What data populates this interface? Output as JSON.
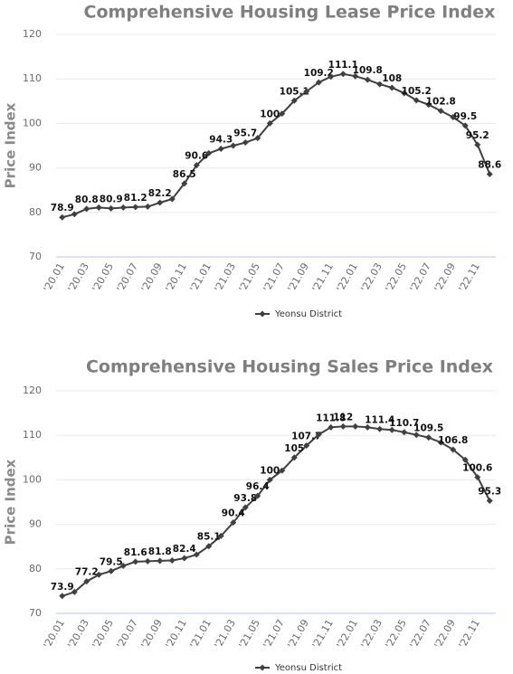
{
  "chart_data": [
    {
      "type": "line",
      "title": "Comprehensive Housing Lease Price Index",
      "ylabel": "Price Index",
      "categories": [
        "'20.01",
        null,
        "'20.03",
        null,
        "'20.05",
        null,
        "'20.07",
        null,
        "'20.09",
        null,
        "'20.11",
        null,
        "'21.01",
        null,
        "'21.03",
        null,
        "'21.05",
        null,
        "'21.07",
        null,
        "'21.09",
        null,
        "'21.11",
        null,
        "'22.01",
        null,
        "'22.03",
        null,
        "'22.05",
        null,
        "'22.07",
        null,
        "'22.09",
        null,
        "'22.11",
        null
      ],
      "series": [
        {
          "name": "Yeonsu District",
          "color": "#404040",
          "values": [
            78.9,
            79.6,
            80.8,
            81.1,
            80.9,
            81.1,
            81.2,
            81.3,
            82.2,
            83.0,
            86.5,
            90.6,
            93.3,
            94.3,
            95.0,
            95.7,
            96.7,
            100,
            102.2,
            105.1,
            107.2,
            109.2,
            110.5,
            111.1,
            110.6,
            109.8,
            108.8,
            108,
            106.8,
            105.2,
            104.2,
            102.8,
            101.4,
            99.5,
            95.2,
            88.6
          ],
          "value_labels": [
            "78.9",
            null,
            "80.8",
            null,
            "80.9",
            null,
            "81.2",
            null,
            "82.2",
            null,
            "86.5",
            "90.6",
            null,
            "94.3",
            null,
            "95.7",
            null,
            "100",
            null,
            "105.1",
            null,
            "109.2",
            null,
            "111.1",
            null,
            "109.8",
            null,
            "108",
            null,
            "105.2",
            null,
            "102.8",
            null,
            "99.5",
            "95.2",
            "88.6"
          ]
        }
      ],
      "ylim": [
        70,
        120
      ],
      "yticks": [
        70,
        80,
        90,
        100,
        110,
        120
      ],
      "grid": true,
      "legend": "bottom"
    },
    {
      "type": "line",
      "title": "Comprehensive Housing Sales Price Index",
      "ylabel": "Price Index",
      "categories": [
        "'20.01",
        null,
        "'20.03",
        null,
        "'20.05",
        null,
        "'20.07",
        null,
        "'20.09",
        null,
        "'20.11",
        null,
        "'21.01",
        null,
        "'21.03",
        null,
        "'21.05",
        null,
        "'21.07",
        null,
        "'21.09",
        null,
        "'21.11",
        null,
        "'22.01",
        null,
        "'22.03",
        null,
        "'22.05",
        null,
        "'22.07",
        null,
        "'22.09",
        null,
        "'22.11",
        null
      ],
      "series": [
        {
          "name": "Yeonsu District",
          "color": "#404040",
          "values": [
            73.9,
            74.8,
            77.2,
            78.7,
            79.5,
            80.7,
            81.6,
            81.7,
            81.8,
            81.9,
            82.4,
            83.2,
            85.1,
            87.4,
            90.4,
            93.8,
            96.4,
            100,
            102.1,
            105,
            107.7,
            110.2,
            111.8,
            112,
            112.0,
            111.8,
            111.4,
            111.2,
            110.7,
            110.1,
            109.5,
            108.4,
            106.8,
            104.5,
            100.6,
            95.3
          ],
          "value_labels": [
            "73.9",
            null,
            "77.2",
            null,
            "79.5",
            null,
            "81.6",
            null,
            "81.8",
            null,
            "82.4",
            null,
            "85.1",
            null,
            "90.4",
            "93.8",
            "96.4",
            "100",
            null,
            "105",
            "107.7",
            null,
            "111.8",
            "112",
            null,
            null,
            "111.4",
            null,
            "110.7",
            null,
            "109.5",
            null,
            "106.8",
            null,
            "100.6",
            "95.3"
          ]
        }
      ],
      "ylim": [
        70,
        120
      ],
      "yticks": [
        70,
        80,
        90,
        100,
        110,
        120
      ],
      "grid": true,
      "legend": "bottom"
    }
  ]
}
